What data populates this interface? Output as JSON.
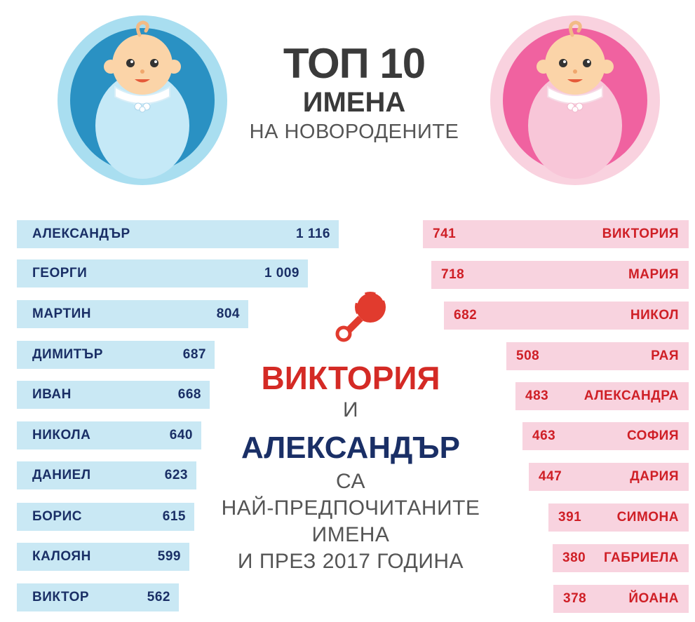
{
  "title": {
    "line1": "ТОП 10",
    "line2": "ИМЕНА",
    "line3": "НА НОВОРОДЕНИТЕ"
  },
  "center": {
    "name_girl": "ВИКТОРИЯ",
    "and": "И",
    "name_boy": "АЛЕКСАНДЪР",
    "line1": "СА",
    "line2": "НАЙ-ПРЕДПОЧИТАНИТЕ",
    "line3": "ИМЕНА",
    "line4": "И ПРЕЗ 2017 ГОДИНА"
  },
  "colors": {
    "boy_bar": "#c9e8f4",
    "boy_text": "#1a2f66",
    "girl_bar": "#f8d3df",
    "girl_text": "#cf1f26"
  },
  "chart_data": [
    {
      "type": "bar",
      "series": [
        {
          "values": [
            1116,
            1009,
            804,
            687,
            668,
            640,
            623,
            615,
            599,
            562
          ]
        }
      ],
      "categories": [
        "АЛЕКСАНДЪР",
        "ГЕОРГИ",
        "МАРТИН",
        "ДИМИТЪР",
        "ИВАН",
        "НИКОЛА",
        "ДАНИЕЛ",
        "БОРИС",
        "КАЛОЯН",
        "ВИКТОР"
      ],
      "value_labels": [
        "1 116",
        "1 009",
        "804",
        "687",
        "668",
        "640",
        "623",
        "615",
        "599",
        "562"
      ],
      "orientation": "horizontal"
    },
    {
      "type": "bar",
      "series": [
        {
          "values": [
            741,
            718,
            682,
            508,
            483,
            463,
            447,
            391,
            380,
            378
          ]
        }
      ],
      "categories": [
        "ВИКТОРИЯ",
        "МАРИЯ",
        "НИКОЛ",
        "РАЯ",
        "АЛЕКСАНДРА",
        "СОФИЯ",
        "ДАРИЯ",
        "СИМОНА",
        "ГАБРИЕЛА",
        "ЙОАНА"
      ],
      "value_labels": [
        "741",
        "718",
        "682",
        "508",
        "483",
        "463",
        "447",
        "391",
        "380",
        "378"
      ],
      "orientation": "horizontal"
    }
  ]
}
